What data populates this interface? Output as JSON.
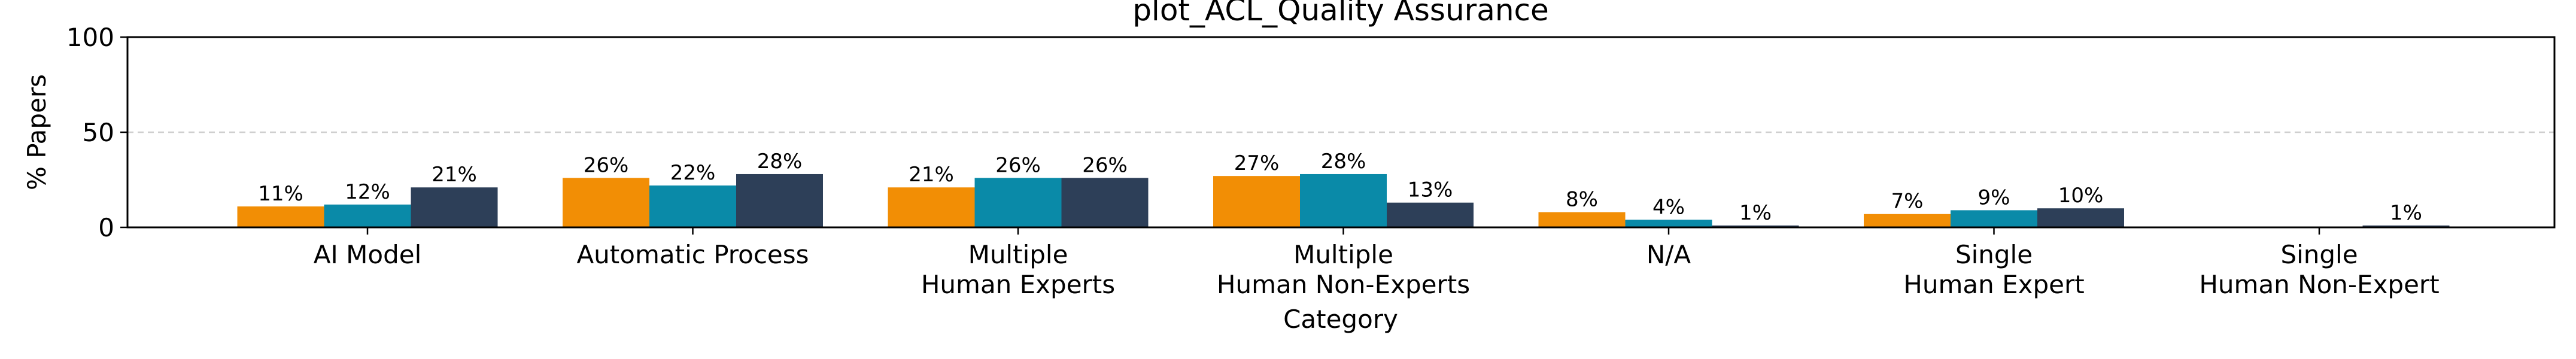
{
  "chart_data": {
    "type": "bar",
    "title": "plot_ACL_Quality Assurance",
    "xlabel": "Category",
    "ylabel": "% Papers",
    "ylim": [
      0,
      100
    ],
    "yticks": [
      "0",
      "50",
      "100"
    ],
    "grid": "horizontal dashed at 50",
    "legend": "none",
    "categories": [
      [
        "AI Model"
      ],
      [
        "Automatic Process"
      ],
      [
        "Multiple",
        "Human Experts"
      ],
      [
        "Multiple",
        "Human Non-Experts"
      ],
      [
        "N/A"
      ],
      [
        "Single",
        "Human Expert"
      ],
      [
        "Single",
        "Human Non-Expert"
      ]
    ],
    "series": [
      {
        "color": "#F28E05",
        "values": [
          11,
          26,
          21,
          27,
          8,
          7,
          0
        ],
        "labels": [
          "11%",
          "26%",
          "21%",
          "27%",
          "8%",
          "7%",
          ""
        ]
      },
      {
        "color": "#0A8AA8",
        "values": [
          12,
          22,
          26,
          28,
          4,
          9,
          0
        ],
        "labels": [
          "12%",
          "22%",
          "26%",
          "28%",
          "4%",
          "9%",
          ""
        ]
      },
      {
        "color": "#2D3F58",
        "values": [
          21,
          28,
          26,
          13,
          1,
          10,
          1
        ],
        "labels": [
          "21%",
          "28%",
          "26%",
          "13%",
          "1%",
          "10%",
          "1%"
        ]
      }
    ]
  }
}
